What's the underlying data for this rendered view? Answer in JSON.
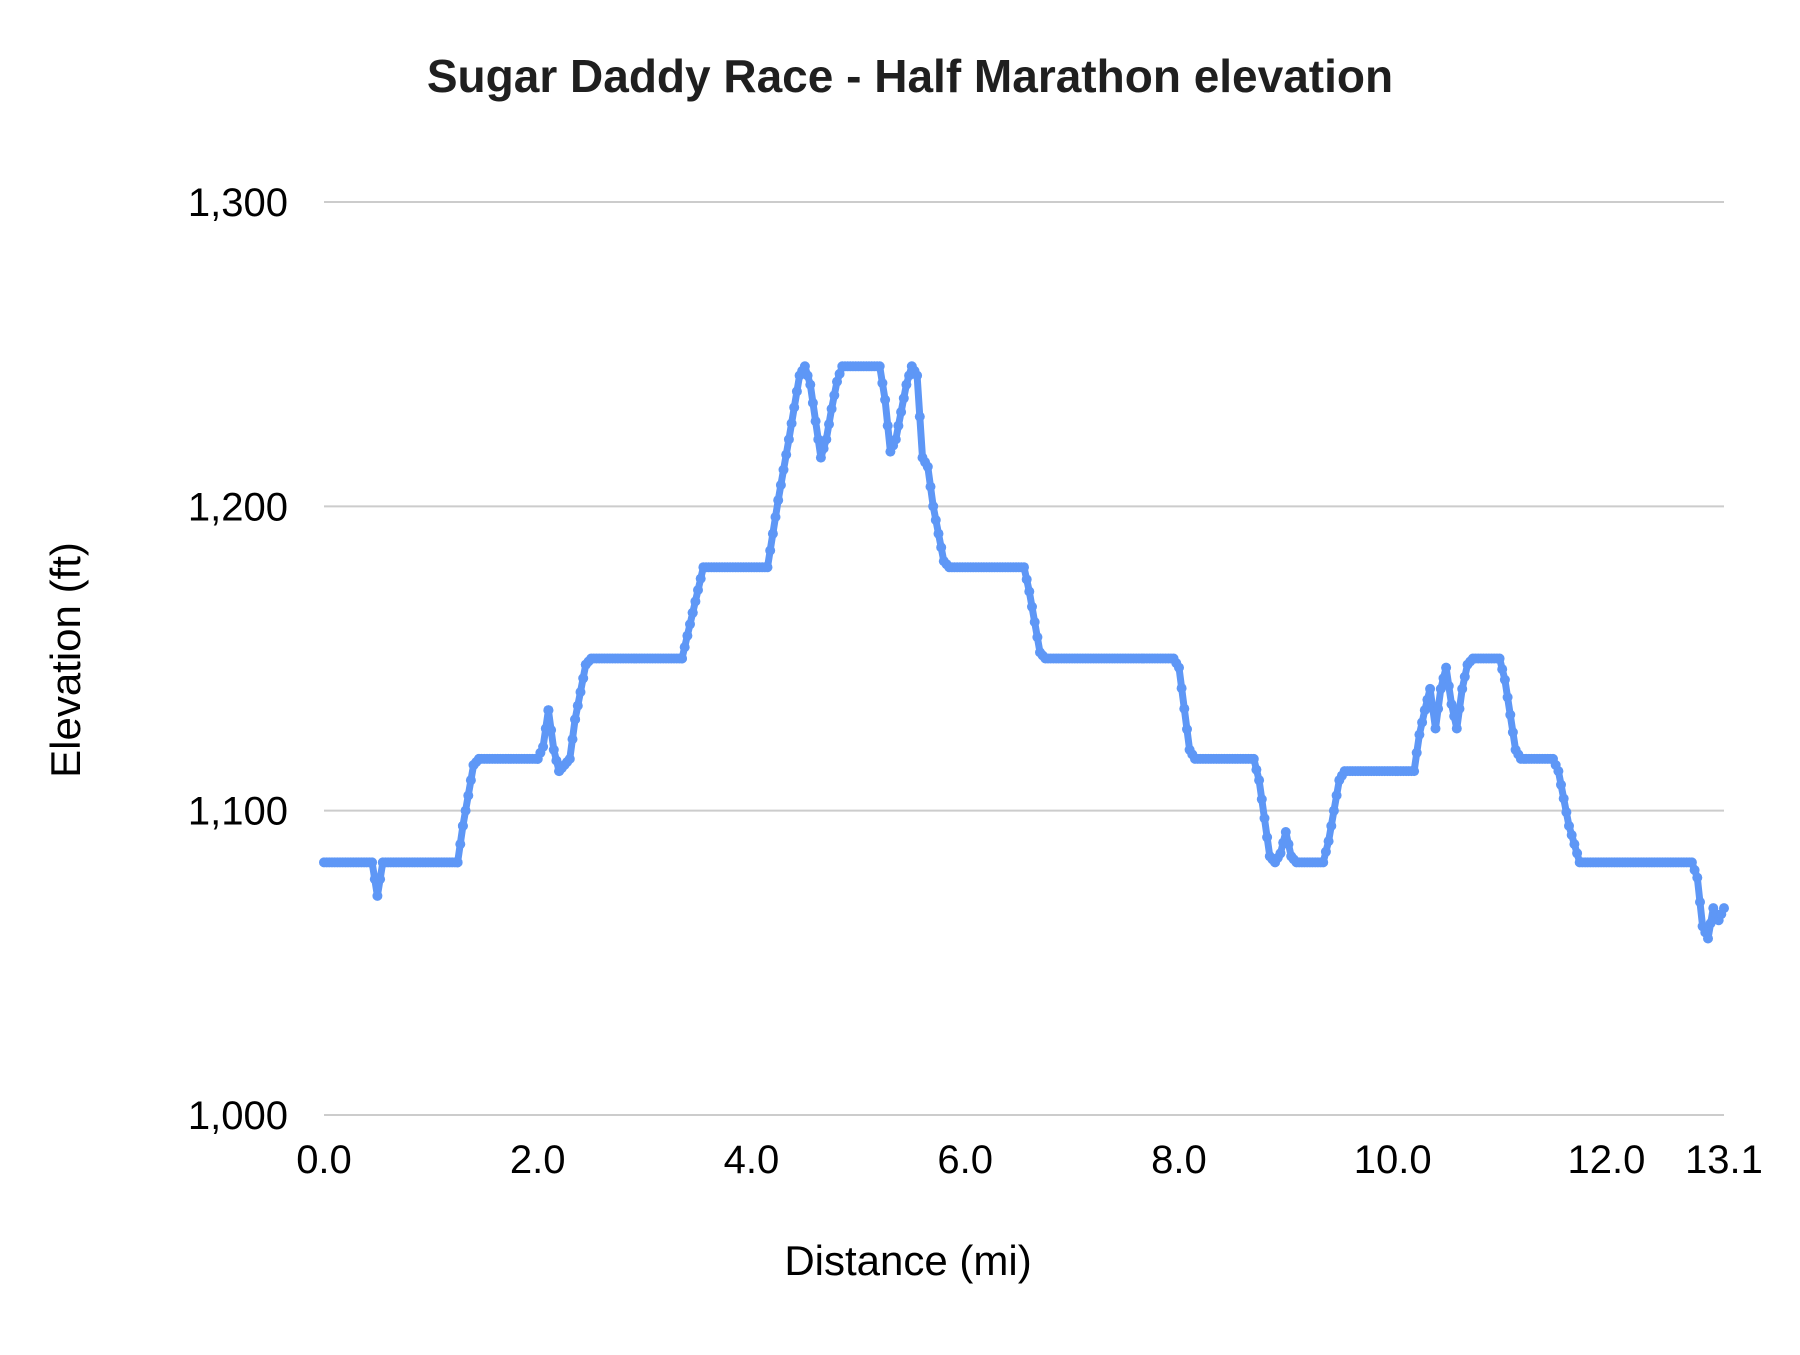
{
  "chart_data": {
    "type": "line",
    "title": "Sugar Daddy Race - Half Marathon elevation",
    "xlabel": "Distance (mi)",
    "ylabel": "Elevation (ft)",
    "xlim": [
      0,
      13.1
    ],
    "ylim": [
      1000,
      1300
    ],
    "grid": true,
    "legend_position": "none",
    "line_color": "#5e97f6",
    "grid_color": "#cccccc",
    "tick_text_color": "#000000",
    "x_tick_values": [
      0,
      2,
      4,
      6,
      8,
      10,
      12,
      13.1
    ],
    "x_tick_labels": [
      "0.0",
      "2.0",
      "4.0",
      "6.0",
      "8.0",
      "10.0",
      "12.0",
      "13.1"
    ],
    "y_tick_values": [
      1000,
      1100,
      1200,
      1300
    ],
    "y_tick_labels": [
      "1,000",
      "1,100",
      "1,200",
      "1,300"
    ],
    "series": [
      {
        "name": "Elevation",
        "points": [
          [
            0.0,
            1083
          ],
          [
            0.45,
            1083
          ],
          [
            0.5,
            1072
          ],
          [
            0.55,
            1083
          ],
          [
            1.25,
            1083
          ],
          [
            1.3,
            1095
          ],
          [
            1.4,
            1115
          ],
          [
            1.45,
            1117
          ],
          [
            2.0,
            1117
          ],
          [
            2.05,
            1121
          ],
          [
            2.1,
            1133
          ],
          [
            2.15,
            1120
          ],
          [
            2.2,
            1113
          ],
          [
            2.3,
            1117
          ],
          [
            2.35,
            1130
          ],
          [
            2.45,
            1148
          ],
          [
            2.5,
            1150
          ],
          [
            3.35,
            1150
          ],
          [
            3.45,
            1165
          ],
          [
            3.55,
            1180
          ],
          [
            4.15,
            1180
          ],
          [
            4.25,
            1202
          ],
          [
            4.35,
            1222
          ],
          [
            4.45,
            1243
          ],
          [
            4.5,
            1246
          ],
          [
            4.55,
            1240
          ],
          [
            4.65,
            1216
          ],
          [
            4.7,
            1222
          ],
          [
            4.75,
            1232
          ],
          [
            4.8,
            1241
          ],
          [
            4.85,
            1246
          ],
          [
            5.2,
            1246
          ],
          [
            5.25,
            1235
          ],
          [
            5.3,
            1218
          ],
          [
            5.35,
            1222
          ],
          [
            5.45,
            1240
          ],
          [
            5.5,
            1246
          ],
          [
            5.55,
            1243
          ],
          [
            5.6,
            1216
          ],
          [
            5.65,
            1213
          ],
          [
            5.7,
            1200
          ],
          [
            5.8,
            1182
          ],
          [
            5.85,
            1180
          ],
          [
            6.55,
            1180
          ],
          [
            6.6,
            1172
          ],
          [
            6.7,
            1152
          ],
          [
            6.75,
            1150
          ],
          [
            7.95,
            1150
          ],
          [
            8.0,
            1147
          ],
          [
            8.1,
            1120
          ],
          [
            8.15,
            1117
          ],
          [
            8.7,
            1117
          ],
          [
            8.75,
            1110
          ],
          [
            8.85,
            1085
          ],
          [
            8.9,
            1083
          ],
          [
            8.95,
            1086
          ],
          [
            9.0,
            1093
          ],
          [
            9.05,
            1085
          ],
          [
            9.1,
            1083
          ],
          [
            9.35,
            1083
          ],
          [
            9.4,
            1090
          ],
          [
            9.5,
            1110
          ],
          [
            9.55,
            1113
          ],
          [
            10.2,
            1113
          ],
          [
            10.25,
            1125
          ],
          [
            10.3,
            1133
          ],
          [
            10.35,
            1140
          ],
          [
            10.4,
            1127
          ],
          [
            10.45,
            1140
          ],
          [
            10.5,
            1147
          ],
          [
            10.55,
            1135
          ],
          [
            10.6,
            1127
          ],
          [
            10.65,
            1140
          ],
          [
            10.7,
            1148
          ],
          [
            10.75,
            1150
          ],
          [
            11.0,
            1150
          ],
          [
            11.05,
            1143
          ],
          [
            11.15,
            1120
          ],
          [
            11.2,
            1117
          ],
          [
            11.5,
            1117
          ],
          [
            11.55,
            1113
          ],
          [
            11.65,
            1095
          ],
          [
            11.75,
            1083
          ],
          [
            12.8,
            1083
          ],
          [
            12.85,
            1078
          ],
          [
            12.9,
            1062
          ],
          [
            12.95,
            1058
          ],
          [
            13.0,
            1068
          ],
          [
            13.05,
            1064
          ],
          [
            13.1,
            1068
          ]
        ]
      }
    ]
  }
}
